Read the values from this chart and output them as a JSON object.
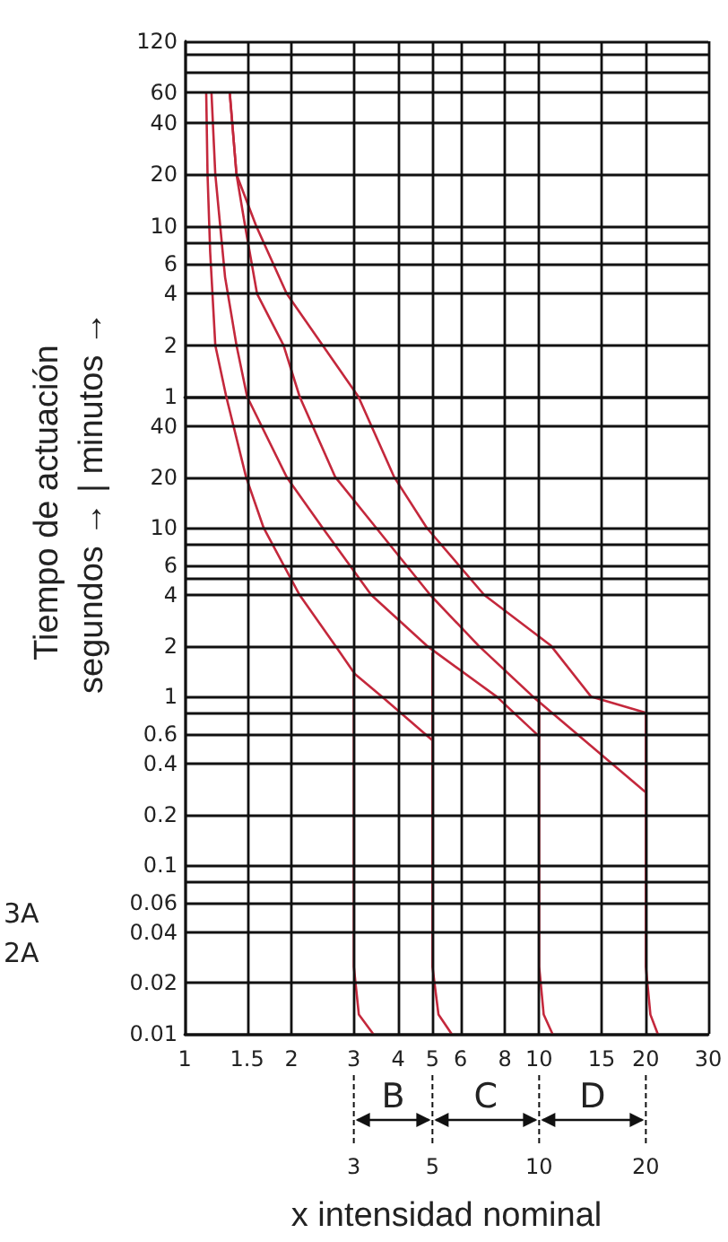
{
  "chart_data": [
    {
      "type": "line",
      "ylabel": "Tiempo de actuación\nsegundos → | minutos →",
      "log": "xy",
      "xlim": [
        1,
        30
      ],
      "xticks": [
        1,
        1.5,
        2,
        3,
        4,
        5,
        6,
        8,
        10,
        15,
        20,
        30
      ],
      "ylim": [
        1,
        120
      ],
      "yticks": [
        120,
        {
          "value": 100,
          "label": null
        },
        {
          "value": 80,
          "label": null
        },
        60,
        40,
        20,
        10,
        {
          "value": 8,
          "label": null
        },
        6,
        4,
        2,
        1
      ],
      "tick_labels": "y",
      "grid": true,
      "marker": "none",
      "line_style": "solid",
      "series": [
        {
          "color": "#c4283c",
          "x": [
            1.15,
            1.16,
            1.18,
            1.22,
            1.31
          ],
          "values": [
            60,
            20,
            7,
            2,
            1
          ]
        },
        {
          "color": "#c4283c",
          "x": [
            1.19,
            1.22,
            1.3,
            1.4,
            1.5
          ],
          "values": [
            60,
            20,
            5,
            2,
            1
          ]
        },
        {
          "color": "#c4283c",
          "x": [
            1.34,
            1.4,
            1.48,
            1.6,
            1.9,
            2.11
          ],
          "values": [
            60,
            20,
            10,
            4,
            2,
            1
          ]
        },
        {
          "color": "#c4283c",
          "x": [
            1.34,
            1.4,
            1.59,
            1.94,
            2.45,
            3.09
          ],
          "values": [
            60,
            20,
            10,
            4,
            2,
            1
          ]
        }
      ]
    },
    {
      "type": "line",
      "xlabel": "x intensidad nominal",
      "log": "xy",
      "xlim": [
        1,
        30
      ],
      "xticks": [
        1,
        1.5,
        2,
        3,
        4,
        5,
        6,
        8,
        10,
        15,
        20,
        30
      ],
      "ylim": [
        0.01,
        60
      ],
      "yticks": [
        40,
        20,
        10,
        {
          "value": 8,
          "label": null
        },
        6,
        {
          "value": 5,
          "label": null
        },
        4,
        2,
        1,
        {
          "value": 0.8,
          "label": null
        },
        0.6,
        0.4,
        0.2,
        0.1,
        {
          "value": 0.08,
          "label": null
        },
        0.06,
        0.04,
        0.02,
        0.01
      ],
      "grid": true,
      "marker": "none",
      "line_style": "solid",
      "series": [
        {
          "color": "#c4283c",
          "x": [
            1.31,
            1.49,
            1.67,
            2.11,
            2.66,
            3.02,
            3.6,
            5
          ],
          "values": [
            60,
            20,
            10,
            4,
            2,
            1.36,
            1,
            0.55
          ]
        },
        {
          "color": "#c4283c",
          "x": [
            1.5,
            1.94,
            2.45,
            3.36,
            4.82,
            7.58,
            10
          ],
          "values": [
            60,
            20,
            10,
            4,
            2,
            1,
            0.58
          ]
        },
        {
          "color": "#c4283c",
          "x": [
            2.11,
            2.66,
            3.47,
            4.93,
            6.75,
            9.6,
            20
          ],
          "values": [
            60,
            20,
            10,
            4,
            2,
            1,
            0.27
          ]
        },
        {
          "color": "#c4283c",
          "x": [
            3.09,
            3.9,
            4.82,
            7,
            10.8,
            14,
            20
          ],
          "values": [
            60,
            20,
            10,
            4,
            2,
            1,
            0.8
          ]
        },
        {
          "color": "#c4283c",
          "x": [
            3,
            3,
            3.1,
            3.4
          ],
          "values": [
            1.36,
            0.025,
            0.013,
            0.01
          ]
        },
        {
          "color": "#c4283c",
          "x": [
            5,
            5,
            5.2,
            5.66
          ],
          "values": [
            1.8,
            0.025,
            0.013,
            0.01
          ]
        },
        {
          "color": "#c4283c",
          "x": [
            10,
            10,
            10.3,
            10.9
          ],
          "values": [
            0.95,
            0.025,
            0.013,
            0.01
          ]
        },
        {
          "color": "#c4283c",
          "x": [
            20,
            20,
            20.6,
            21.6
          ],
          "values": [
            0.8,
            0.025,
            0.013,
            0.01
          ]
        }
      ],
      "ref_lines": [
        {
          "axis": "x",
          "value": 3,
          "label": "3",
          "line_style": "dashed"
        },
        {
          "axis": "x",
          "value": 5,
          "label": "5",
          "line_style": "dashed"
        },
        {
          "axis": "x",
          "value": 10,
          "label": "10",
          "line_style": "dashed"
        },
        {
          "axis": "x",
          "value": 20,
          "label": "20",
          "line_style": "dashed"
        }
      ],
      "annotations": [
        "B",
        "C",
        "D",
        "3A",
        "2A"
      ]
    }
  ]
}
